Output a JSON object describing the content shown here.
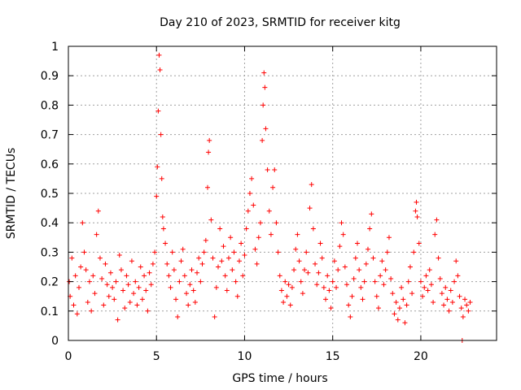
{
  "chart_data": {
    "type": "scatter",
    "title": "Day 210 of 2023, SRMTID for receiver kitg",
    "xlabel": "GPS time / hours",
    "ylabel": "SRMTID / TECUs",
    "xlim": [
      0,
      24.3
    ],
    "ylim": [
      0,
      1
    ],
    "x_ticks": [
      0,
      5,
      10,
      15,
      20
    ],
    "x_tick_labels": [
      "0",
      "5",
      "10",
      "15",
      "20"
    ],
    "y_ticks": [
      0,
      0.1,
      0.2,
      0.3,
      0.4,
      0.5,
      0.6,
      0.7,
      0.8,
      0.9,
      1
    ],
    "y_tick_labels": [
      "0",
      "0.1",
      "0.2",
      "0.3",
      "0.4",
      "0.5",
      "0.6",
      "0.7",
      "0.8",
      "0.9",
      "1"
    ],
    "grid": true,
    "marker": "+",
    "color": "#ff0000",
    "series": [
      {
        "name": "SRMTID",
        "points": [
          [
            0.05,
            0.2
          ],
          [
            0.1,
            0.15
          ],
          [
            0.2,
            0.28
          ],
          [
            0.3,
            0.12
          ],
          [
            0.4,
            0.22
          ],
          [
            0.5,
            0.09
          ],
          [
            0.6,
            0.18
          ],
          [
            0.7,
            0.25
          ],
          [
            0.8,
            0.4
          ],
          [
            0.9,
            0.3
          ],
          [
            1.0,
            0.24
          ],
          [
            1.1,
            0.13
          ],
          [
            1.2,
            0.2
          ],
          [
            1.3,
            0.1
          ],
          [
            1.4,
            0.22
          ],
          [
            1.5,
            0.16
          ],
          [
            1.6,
            0.36
          ],
          [
            1.7,
            0.44
          ],
          [
            1.8,
            0.28
          ],
          [
            1.9,
            0.21
          ],
          [
            2.0,
            0.12
          ],
          [
            2.1,
            0.26
          ],
          [
            2.2,
            0.19
          ],
          [
            2.3,
            0.15
          ],
          [
            2.4,
            0.23
          ],
          [
            2.5,
            0.18
          ],
          [
            2.6,
            0.14
          ],
          [
            2.7,
            0.2
          ],
          [
            2.8,
            0.07
          ],
          [
            2.9,
            0.29
          ],
          [
            3.0,
            0.24
          ],
          [
            3.1,
            0.17
          ],
          [
            3.2,
            0.11
          ],
          [
            3.3,
            0.22
          ],
          [
            3.4,
            0.19
          ],
          [
            3.5,
            0.13
          ],
          [
            3.6,
            0.27
          ],
          [
            3.7,
            0.16
          ],
          [
            3.8,
            0.2
          ],
          [
            3.9,
            0.12
          ],
          [
            4.0,
            0.18
          ],
          [
            4.1,
            0.25
          ],
          [
            4.2,
            0.14
          ],
          [
            4.3,
            0.22
          ],
          [
            4.4,
            0.17
          ],
          [
            4.5,
            0.1
          ],
          [
            4.6,
            0.23
          ],
          [
            4.7,
            0.19
          ],
          [
            4.8,
            0.26
          ],
          [
            4.9,
            0.3
          ],
          [
            5.0,
            0.49
          ],
          [
            5.05,
            0.59
          ],
          [
            5.1,
            0.78
          ],
          [
            5.15,
            0.97
          ],
          [
            5.2,
            0.92
          ],
          [
            5.25,
            0.7
          ],
          [
            5.3,
            0.55
          ],
          [
            5.35,
            0.42
          ],
          [
            5.4,
            0.38
          ],
          [
            5.5,
            0.33
          ],
          [
            5.6,
            0.26
          ],
          [
            5.7,
            0.22
          ],
          [
            5.8,
            0.18
          ],
          [
            5.9,
            0.3
          ],
          [
            6.0,
            0.24
          ],
          [
            6.1,
            0.14
          ],
          [
            6.2,
            0.08
          ],
          [
            6.3,
            0.2
          ],
          [
            6.4,
            0.27
          ],
          [
            6.5,
            0.31
          ],
          [
            6.6,
            0.22
          ],
          [
            6.7,
            0.16
          ],
          [
            6.8,
            0.12
          ],
          [
            6.9,
            0.19
          ],
          [
            7.0,
            0.24
          ],
          [
            7.1,
            0.17
          ],
          [
            7.2,
            0.13
          ],
          [
            7.3,
            0.23
          ],
          [
            7.4,
            0.28
          ],
          [
            7.5,
            0.2
          ],
          [
            7.6,
            0.26
          ],
          [
            7.7,
            0.3
          ],
          [
            7.8,
            0.34
          ],
          [
            7.9,
            0.52
          ],
          [
            7.95,
            0.64
          ],
          [
            8.0,
            0.68
          ],
          [
            8.1,
            0.41
          ],
          [
            8.2,
            0.28
          ],
          [
            8.3,
            0.08
          ],
          [
            8.4,
            0.18
          ],
          [
            8.5,
            0.25
          ],
          [
            8.6,
            0.38
          ],
          [
            8.7,
            0.27
          ],
          [
            8.8,
            0.32
          ],
          [
            8.9,
            0.22
          ],
          [
            9.0,
            0.17
          ],
          [
            9.1,
            0.28
          ],
          [
            9.2,
            0.35
          ],
          [
            9.3,
            0.24
          ],
          [
            9.4,
            0.3
          ],
          [
            9.5,
            0.2
          ],
          [
            9.6,
            0.15
          ],
          [
            9.7,
            0.27
          ],
          [
            9.8,
            0.33
          ],
          [
            9.9,
            0.22
          ],
          [
            10.0,
            0.29
          ],
          [
            10.1,
            0.38
          ],
          [
            10.2,
            0.44
          ],
          [
            10.3,
            0.5
          ],
          [
            10.4,
            0.55
          ],
          [
            10.5,
            0.46
          ],
          [
            10.6,
            0.31
          ],
          [
            10.7,
            0.26
          ],
          [
            10.8,
            0.35
          ],
          [
            10.9,
            0.4
          ],
          [
            11.0,
            0.68
          ],
          [
            11.05,
            0.8
          ],
          [
            11.1,
            0.91
          ],
          [
            11.15,
            0.86
          ],
          [
            11.2,
            0.72
          ],
          [
            11.3,
            0.58
          ],
          [
            11.4,
            0.44
          ],
          [
            11.5,
            0.36
          ],
          [
            11.6,
            0.52
          ],
          [
            11.7,
            0.58
          ],
          [
            11.8,
            0.4
          ],
          [
            11.9,
            0.3
          ],
          [
            12.0,
            0.22
          ],
          [
            12.1,
            0.17
          ],
          [
            12.2,
            0.13
          ],
          [
            12.3,
            0.2
          ],
          [
            12.4,
            0.15
          ],
          [
            12.5,
            0.19
          ],
          [
            12.6,
            0.12
          ],
          [
            12.7,
            0.18
          ],
          [
            12.8,
            0.24
          ],
          [
            12.9,
            0.31
          ],
          [
            13.0,
            0.36
          ],
          [
            13.1,
            0.27
          ],
          [
            13.2,
            0.2
          ],
          [
            13.3,
            0.16
          ],
          [
            13.4,
            0.24
          ],
          [
            13.5,
            0.3
          ],
          [
            13.6,
            0.23
          ],
          [
            13.7,
            0.45
          ],
          [
            13.8,
            0.53
          ],
          [
            13.9,
            0.38
          ],
          [
            14.0,
            0.26
          ],
          [
            14.1,
            0.19
          ],
          [
            14.2,
            0.23
          ],
          [
            14.3,
            0.33
          ],
          [
            14.4,
            0.28
          ],
          [
            14.5,
            0.18
          ],
          [
            14.6,
            0.14
          ],
          [
            14.7,
            0.22
          ],
          [
            14.8,
            0.17
          ],
          [
            14.9,
            0.11
          ],
          [
            15.0,
            0.2
          ],
          [
            15.1,
            0.27
          ],
          [
            15.2,
            0.18
          ],
          [
            15.3,
            0.24
          ],
          [
            15.4,
            0.32
          ],
          [
            15.5,
            0.4
          ],
          [
            15.6,
            0.36
          ],
          [
            15.7,
            0.25
          ],
          [
            15.8,
            0.19
          ],
          [
            15.9,
            0.12
          ],
          [
            16.0,
            0.08
          ],
          [
            16.1,
            0.15
          ],
          [
            16.2,
            0.21
          ],
          [
            16.3,
            0.28
          ],
          [
            16.4,
            0.33
          ],
          [
            16.5,
            0.24
          ],
          [
            16.6,
            0.18
          ],
          [
            16.7,
            0.14
          ],
          [
            16.8,
            0.2
          ],
          [
            16.9,
            0.26
          ],
          [
            17.0,
            0.31
          ],
          [
            17.1,
            0.38
          ],
          [
            17.2,
            0.43
          ],
          [
            17.3,
            0.28
          ],
          [
            17.4,
            0.2
          ],
          [
            17.5,
            0.15
          ],
          [
            17.6,
            0.11
          ],
          [
            17.7,
            0.22
          ],
          [
            17.8,
            0.27
          ],
          [
            17.9,
            0.19
          ],
          [
            18.0,
            0.24
          ],
          [
            18.1,
            0.3
          ],
          [
            18.2,
            0.35
          ],
          [
            18.3,
            0.21
          ],
          [
            18.4,
            0.16
          ],
          [
            18.5,
            0.09
          ],
          [
            18.6,
            0.13
          ],
          [
            18.7,
            0.07
          ],
          [
            18.8,
            0.11
          ],
          [
            18.9,
            0.18
          ],
          [
            19.0,
            0.14
          ],
          [
            19.1,
            0.06
          ],
          [
            19.2,
            0.12
          ],
          [
            19.3,
            0.2
          ],
          [
            19.4,
            0.25
          ],
          [
            19.5,
            0.16
          ],
          [
            19.6,
            0.3
          ],
          [
            19.7,
            0.44
          ],
          [
            19.75,
            0.47
          ],
          [
            19.8,
            0.42
          ],
          [
            19.9,
            0.33
          ],
          [
            20.0,
            0.2
          ],
          [
            20.1,
            0.15
          ],
          [
            20.2,
            0.18
          ],
          [
            20.3,
            0.22
          ],
          [
            20.4,
            0.17
          ],
          [
            20.5,
            0.24
          ],
          [
            20.6,
            0.19
          ],
          [
            20.7,
            0.13
          ],
          [
            20.8,
            0.36
          ],
          [
            20.9,
            0.41
          ],
          [
            21.0,
            0.28
          ],
          [
            21.1,
            0.21
          ],
          [
            21.2,
            0.16
          ],
          [
            21.3,
            0.12
          ],
          [
            21.4,
            0.18
          ],
          [
            21.5,
            0.14
          ],
          [
            21.6,
            0.1
          ],
          [
            21.7,
            0.17
          ],
          [
            21.8,
            0.13
          ],
          [
            21.9,
            0.2
          ],
          [
            22.0,
            0.27
          ],
          [
            22.1,
            0.22
          ],
          [
            22.2,
            0.15
          ],
          [
            22.3,
            0.11
          ],
          [
            22.35,
            0.0
          ],
          [
            22.4,
            0.08
          ],
          [
            22.5,
            0.14
          ],
          [
            22.6,
            0.12
          ],
          [
            22.7,
            0.1
          ],
          [
            22.8,
            0.13
          ]
        ]
      }
    ]
  }
}
